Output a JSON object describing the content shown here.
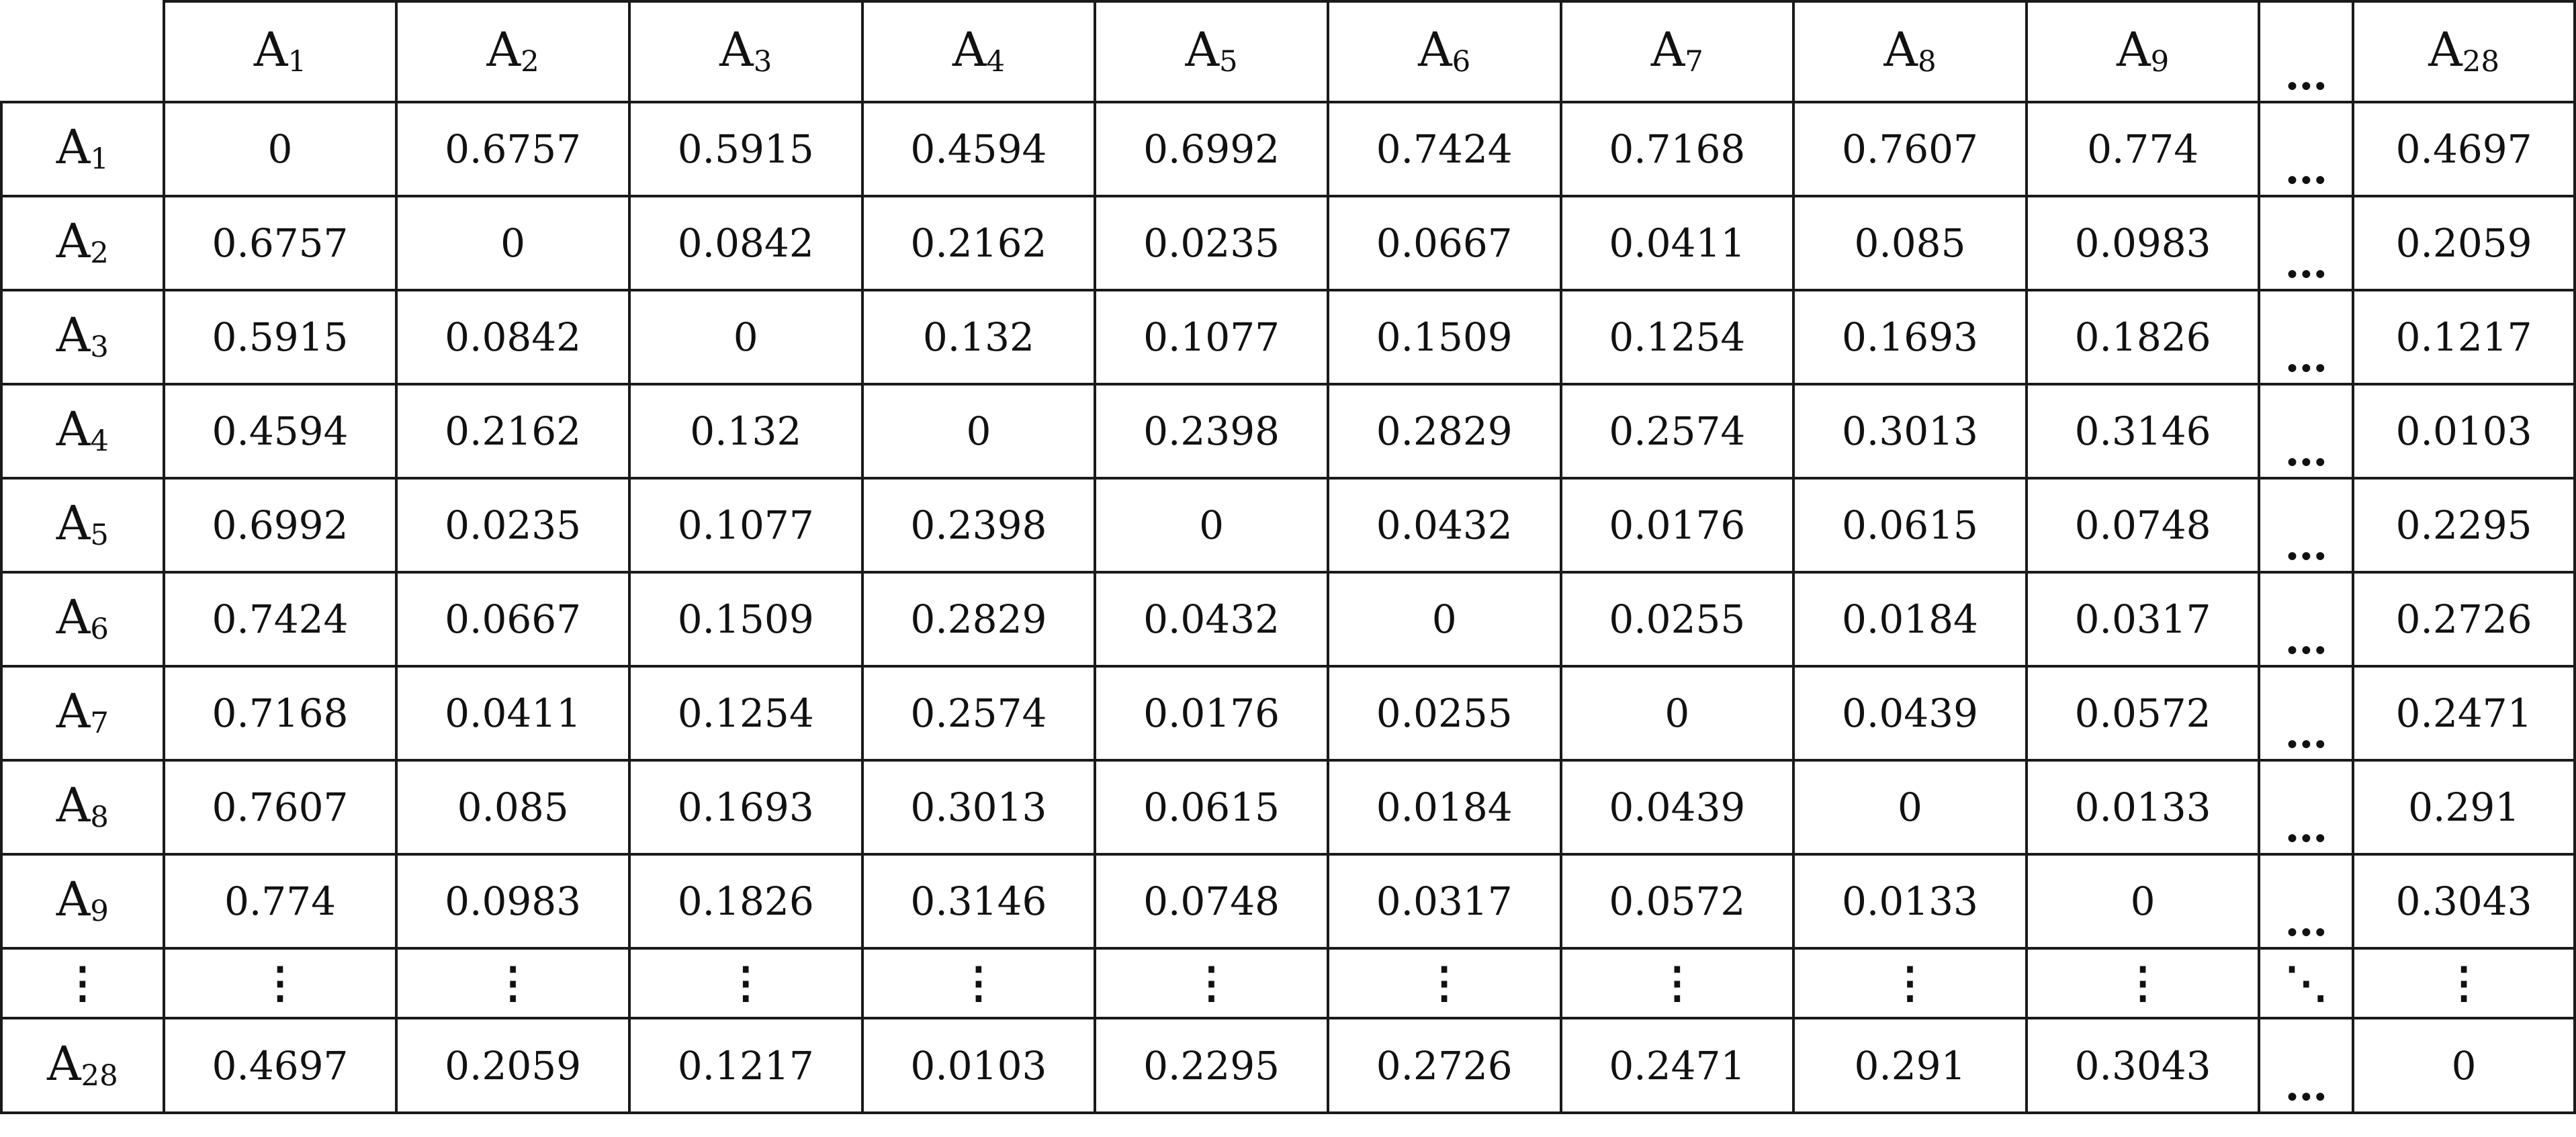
{
  "table": {
    "ellipsis_h": "…",
    "ellipsis_v": "⋮",
    "ellipsis_d": "⋱",
    "columns": [
      {
        "base": "A",
        "sub": "1"
      },
      {
        "base": "A",
        "sub": "2"
      },
      {
        "base": "A",
        "sub": "3"
      },
      {
        "base": "A",
        "sub": "4"
      },
      {
        "base": "A",
        "sub": "5"
      },
      {
        "base": "A",
        "sub": "6"
      },
      {
        "base": "A",
        "sub": "7"
      },
      {
        "base": "A",
        "sub": "8"
      },
      {
        "base": "A",
        "sub": "9"
      },
      {
        "ellipsis": true
      },
      {
        "base": "A",
        "sub": "28"
      }
    ],
    "rows": [
      {
        "label": {
          "base": "A",
          "sub": "1"
        },
        "values": [
          "0",
          "0.6757",
          "0.5915",
          "0.4594",
          "0.6992",
          "0.7424",
          "0.7168",
          "0.7607",
          "0.774",
          "…",
          "0.4697"
        ]
      },
      {
        "label": {
          "base": "A",
          "sub": "2"
        },
        "values": [
          "0.6757",
          "0",
          "0.0842",
          "0.2162",
          "0.0235",
          "0.0667",
          "0.0411",
          "0.085",
          "0.0983",
          "…",
          "0.2059"
        ]
      },
      {
        "label": {
          "base": "A",
          "sub": "3"
        },
        "values": [
          "0.5915",
          "0.0842",
          "0",
          "0.132",
          "0.1077",
          "0.1509",
          "0.1254",
          "0.1693",
          "0.1826",
          "…",
          "0.1217"
        ]
      },
      {
        "label": {
          "base": "A",
          "sub": "4"
        },
        "values": [
          "0.4594",
          "0.2162",
          "0.132",
          "0",
          "0.2398",
          "0.2829",
          "0.2574",
          "0.3013",
          "0.3146",
          "…",
          "0.0103"
        ]
      },
      {
        "label": {
          "base": "A",
          "sub": "5"
        },
        "values": [
          "0.6992",
          "0.0235",
          "0.1077",
          "0.2398",
          "0",
          "0.0432",
          "0.0176",
          "0.0615",
          "0.0748",
          "…",
          "0.2295"
        ]
      },
      {
        "label": {
          "base": "A",
          "sub": "6"
        },
        "values": [
          "0.7424",
          "0.0667",
          "0.1509",
          "0.2829",
          "0.0432",
          "0",
          "0.0255",
          "0.0184",
          "0.0317",
          "…",
          "0.2726"
        ]
      },
      {
        "label": {
          "base": "A",
          "sub": "7"
        },
        "values": [
          "0.7168",
          "0.0411",
          "0.1254",
          "0.2574",
          "0.0176",
          "0.0255",
          "0",
          "0.0439",
          "0.0572",
          "…",
          "0.2471"
        ]
      },
      {
        "label": {
          "base": "A",
          "sub": "8"
        },
        "values": [
          "0.7607",
          "0.085",
          "0.1693",
          "0.3013",
          "0.0615",
          "0.0184",
          "0.0439",
          "0",
          "0.0133",
          "…",
          "0.291"
        ]
      },
      {
        "label": {
          "base": "A",
          "sub": "9"
        },
        "values": [
          "0.774",
          "0.0983",
          "0.1826",
          "0.3146",
          "0.0748",
          "0.0317",
          "0.0572",
          "0.0133",
          "0",
          "…",
          "0.3043"
        ]
      },
      {
        "label": {
          "text": "⋮"
        },
        "values": [
          "⋮",
          "⋮",
          "⋮",
          "⋮",
          "⋮",
          "⋮",
          "⋮",
          "⋮",
          "⋮",
          "⋱",
          "⋮"
        ]
      },
      {
        "label": {
          "base": "A",
          "sub": "28"
        },
        "values": [
          "0.4697",
          "0.2059",
          "0.1217",
          "0.0103",
          "0.2295",
          "0.2726",
          "0.2471",
          "0.291",
          "0.3043",
          "…",
          "0"
        ]
      }
    ]
  }
}
